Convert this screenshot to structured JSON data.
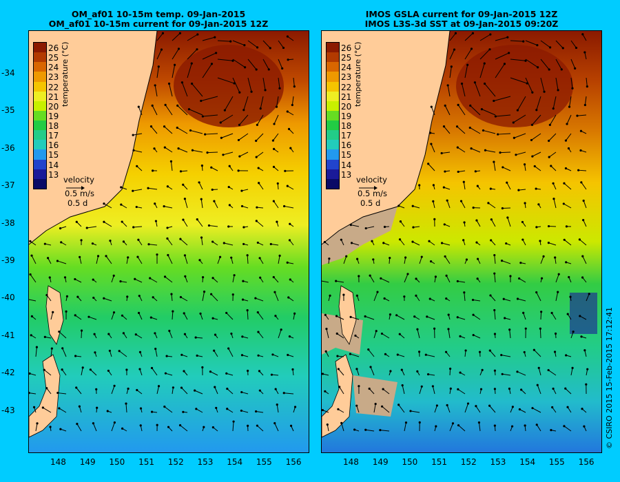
{
  "left_panel": {
    "title_line1": "OM_af01 10-15m temp. 09-Jan-2015",
    "title_line2": "OM_af01 10-15m current for 09-Jan-2015 12Z"
  },
  "right_panel": {
    "title_line1": "IMOS GSLA current for 09-Jan-2015 12Z",
    "title_line2": "IMOS L3S-3d SST at 09-Jan-2015 09:20Z"
  },
  "colorbar": {
    "label": "temperature (°C)",
    "ticks": [
      "26",
      "25",
      "24",
      "23",
      "22",
      "21",
      "20",
      "19",
      "18",
      "17",
      "16",
      "15",
      "14",
      "13"
    ],
    "colors": [
      "#8b1a00",
      "#b23a00",
      "#d96600",
      "#ee9900",
      "#f5c400",
      "#eeee22",
      "#c8f000",
      "#66dd22",
      "#22cc44",
      "#22cc88",
      "#22ccbb",
      "#2299ee",
      "#2244cc",
      "#1a1a99",
      "#0a0a66"
    ]
  },
  "velocity_legend": {
    "label": "velocity",
    "speed": "0.5 m/s",
    "duration": "0.5 d"
  },
  "latitude_labels": [
    "-34",
    "-35",
    "-36",
    "-37",
    "-38",
    "-39",
    "-40",
    "-41",
    "-42",
    "-43"
  ],
  "longitude_labels": [
    "148",
    "149",
    "150",
    "151",
    "152",
    "153",
    "154",
    "155",
    "156"
  ],
  "credit": "© CSIRO 2015   15-Feb-2015 17:12:41",
  "colors": {
    "background": "#00ccff",
    "land": "#ffcc99",
    "no_data": "#c8aa88"
  }
}
